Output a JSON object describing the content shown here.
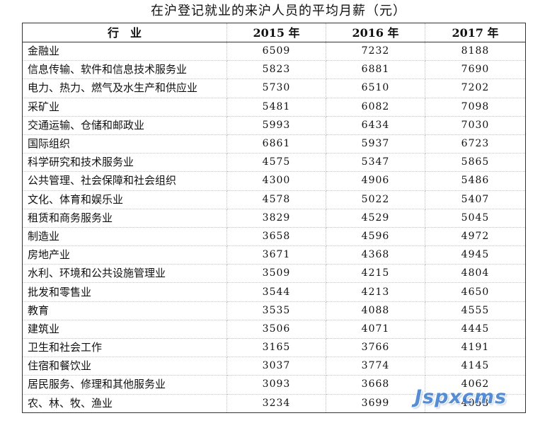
{
  "title": "在沪登记就业的来沪人员的平均月薪（元）",
  "table": {
    "headers": [
      "行　业",
      "2015 年",
      "2016 年",
      "2017 年"
    ],
    "rows": [
      {
        "industry": "金融业",
        "y2015": "6509",
        "y2016": "7232",
        "y2017": "8188"
      },
      {
        "industry": "信息传输、软件和信息技术服务业",
        "y2015": "5823",
        "y2016": "6881",
        "y2017": "7690"
      },
      {
        "industry": "电力、热力、燃气及水生产和供应业",
        "y2015": "5730",
        "y2016": "6510",
        "y2017": "7202"
      },
      {
        "industry": "采矿业",
        "y2015": "5481",
        "y2016": "6082",
        "y2017": "7098"
      },
      {
        "industry": "交通运输、仓储和邮政业",
        "y2015": "5993",
        "y2016": "6434",
        "y2017": "7030"
      },
      {
        "industry": "国际组织",
        "y2015": "6861",
        "y2016": "5937",
        "y2017": "6723"
      },
      {
        "industry": "科学研究和技术服务业",
        "y2015": "4575",
        "y2016": "5347",
        "y2017": "5865"
      },
      {
        "industry": "公共管理、社会保障和社会组织",
        "y2015": "4300",
        "y2016": "4906",
        "y2017": "5486"
      },
      {
        "industry": "文化、体育和娱乐业",
        "y2015": "4578",
        "y2016": "5022",
        "y2017": "5407"
      },
      {
        "industry": "租赁和商务服务业",
        "y2015": "3829",
        "y2016": "4529",
        "y2017": "5045"
      },
      {
        "industry": "制造业",
        "y2015": "3658",
        "y2016": "4596",
        "y2017": "4972"
      },
      {
        "industry": "房地产业",
        "y2015": "3671",
        "y2016": "4368",
        "y2017": "4945"
      },
      {
        "industry": "水利、环境和公共设施管理业",
        "y2015": "3509",
        "y2016": "4215",
        "y2017": "4804"
      },
      {
        "industry": "批发和零售业",
        "y2015": "3544",
        "y2016": "4213",
        "y2017": "4650"
      },
      {
        "industry": "教育",
        "y2015": "3535",
        "y2016": "4088",
        "y2017": "4555"
      },
      {
        "industry": "建筑业",
        "y2015": "3506",
        "y2016": "4071",
        "y2017": "4445"
      },
      {
        "industry": "卫生和社会工作",
        "y2015": "3165",
        "y2016": "3766",
        "y2017": "4191"
      },
      {
        "industry": "住宿和餐饮业",
        "y2015": "3037",
        "y2016": "3774",
        "y2017": "4145"
      },
      {
        "industry": "居民服务、修理和其他服务业",
        "y2015": "3093",
        "y2016": "3668",
        "y2017": "4062"
      },
      {
        "industry": "农、林、牧、渔业",
        "y2015": "3234",
        "y2016": "3699",
        "y2017": "4053"
      }
    ]
  },
  "watermark": "Jspxcms",
  "colors": {
    "watermark": "#3e7fd0",
    "border": "#333333",
    "text": "#111111"
  }
}
